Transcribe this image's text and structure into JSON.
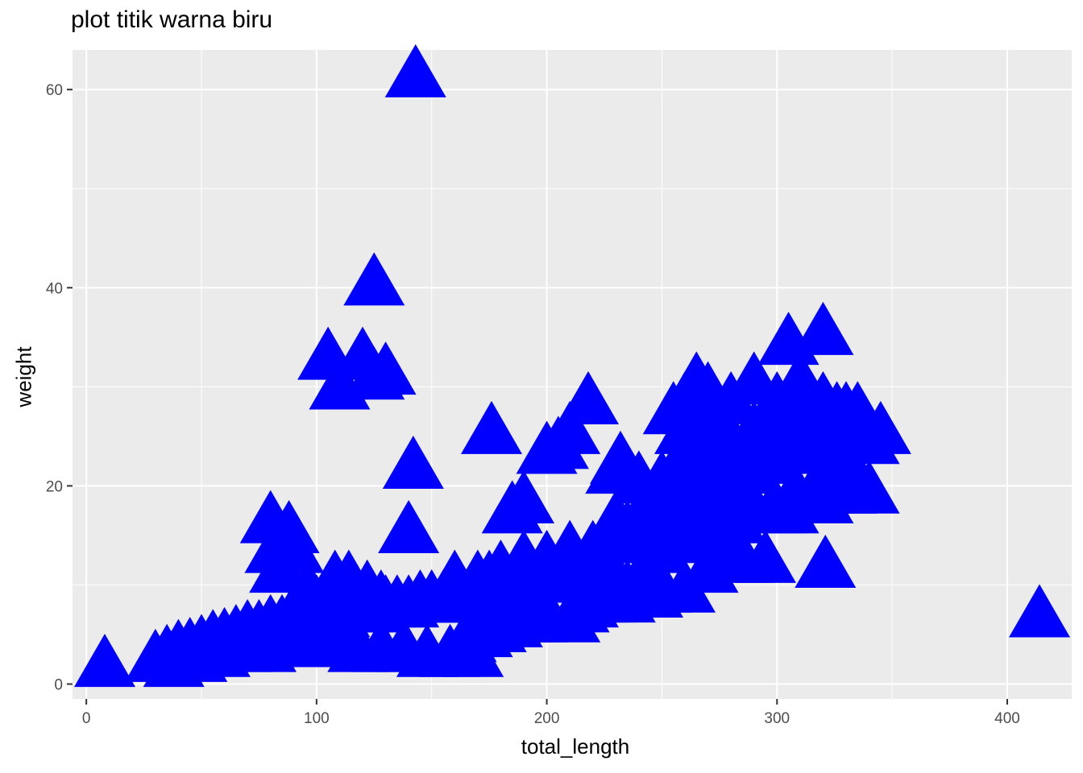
{
  "chart_data": {
    "type": "scatter",
    "title": "plot titik warna biru",
    "xlabel": "total_length",
    "ylabel": "weight",
    "xlim": [
      -6,
      428
    ],
    "ylim": [
      -1.5,
      64
    ],
    "x_ticks": [
      0,
      100,
      200,
      300,
      400
    ],
    "y_ticks": [
      0,
      20,
      40,
      60
    ],
    "x_tick_labels": [
      "0",
      "100",
      "200",
      "300",
      "400"
    ],
    "y_tick_labels": [
      "0",
      "20",
      "40",
      "60"
    ],
    "grid": true,
    "panel_background": "#EBEBEB",
    "grid_color": "#FFFFFF",
    "point_shape": "triangle",
    "point_color": "#0000FF",
    "series": [
      {
        "x": [
          8,
          30,
          35,
          40,
          45,
          50,
          55,
          60,
          65,
          70,
          75,
          80,
          85,
          90,
          95,
          100,
          105,
          110,
          115,
          120,
          125,
          130,
          135,
          140,
          145,
          150,
          155,
          160,
          165,
          38,
          48,
          58,
          68,
          78,
          88,
          98,
          108,
          118,
          128,
          138,
          148,
          158,
          168,
          80,
          88,
          82,
          90,
          84,
          96,
          100,
          108,
          114,
          122,
          128,
          105,
          110,
          120,
          125,
          130,
          125,
          142,
          140,
          143,
          150,
          160,
          170,
          175,
          180,
          185,
          190,
          195,
          200,
          205,
          210,
          215,
          220,
          225,
          230,
          235,
          240,
          165,
          172,
          178,
          185,
          190,
          196,
          200,
          210,
          214,
          218,
          222,
          226,
          230,
          234,
          238,
          242,
          246,
          250,
          160,
          170,
          180,
          190,
          200,
          210,
          220,
          230,
          240,
          250,
          260,
          270,
          280,
          290,
          300,
          310,
          320,
          330,
          340,
          250,
          256,
          260,
          266,
          270,
          276,
          280,
          286,
          290,
          296,
          300,
          306,
          310,
          316,
          320,
          326,
          330,
          336,
          340,
          245,
          255,
          265,
          275,
          285,
          295,
          305,
          315,
          325,
          335,
          250,
          258,
          266,
          274,
          282,
          290,
          298,
          306,
          314,
          322,
          330,
          240,
          250,
          260,
          270,
          280,
          290,
          300,
          310,
          320,
          305,
          320,
          300,
          290,
          310,
          315,
          330,
          345,
          280,
          270,
          260,
          260,
          270,
          285,
          295,
          305,
          320,
          330,
          176,
          185,
          190,
          210,
          205,
          200,
          218,
          230,
          235,
          232,
          240,
          195,
          210,
          230,
          240,
          250,
          260,
          270,
          280,
          414,
          321,
          300,
          310,
          255,
          265
        ],
        "y": [
          1.5,
          2,
          2.5,
          3,
          3.2,
          3.5,
          4,
          4.2,
          4.5,
          5,
          5,
          5.5,
          5.5,
          6,
          6,
          6,
          6.5,
          6.5,
          7,
          7,
          7,
          7.5,
          7.5,
          7.5,
          8,
          8,
          8,
          8,
          8,
          1.5,
          2,
          2.5,
          3,
          3,
          3.5,
          3.5,
          3.5,
          3,
          3,
          3,
          2.5,
          2.5,
          2.5,
          16,
          15,
          13,
          13,
          11,
          9,
          7.5,
          10,
          10,
          9,
          8,
          32.5,
          29.5,
          32.5,
          30.5,
          31,
          40,
          21.5,
          15,
          61,
          8,
          8,
          9,
          10,
          10,
          9,
          9,
          10,
          11,
          10,
          11,
          10,
          12,
          9,
          10,
          9,
          9,
          4,
          4.5,
          5,
          5.5,
          6,
          6,
          6.5,
          6,
          7,
          7.5,
          8,
          8,
          8.5,
          8,
          9,
          9,
          8.5,
          9,
          10,
          10,
          11,
          12,
          12,
          13,
          13,
          14,
          14,
          15,
          15,
          16,
          16,
          17,
          17,
          18,
          18,
          19,
          19,
          20,
          21,
          22,
          21,
          23,
          22,
          24,
          23,
          25,
          24,
          26,
          25,
          27,
          26,
          28,
          27,
          26,
          25,
          24,
          18,
          19,
          20,
          21,
          22,
          23,
          24,
          25,
          26,
          27,
          13,
          14,
          15,
          15,
          16,
          17,
          17,
          18,
          18,
          19,
          19,
          16,
          17,
          18,
          19,
          20,
          21,
          22,
          23,
          24,
          34,
          35,
          28,
          30,
          30,
          28,
          27,
          25,
          28,
          29,
          28,
          25,
          26,
          12,
          12,
          17,
          20,
          22,
          25,
          17,
          18,
          25,
          23.5,
          23,
          28,
          21,
          15,
          22,
          20,
          10,
          11,
          16,
          14,
          16,
          9,
          11,
          13,
          6.5,
          11.5,
          25,
          27,
          27,
          30
        ]
      }
    ]
  }
}
